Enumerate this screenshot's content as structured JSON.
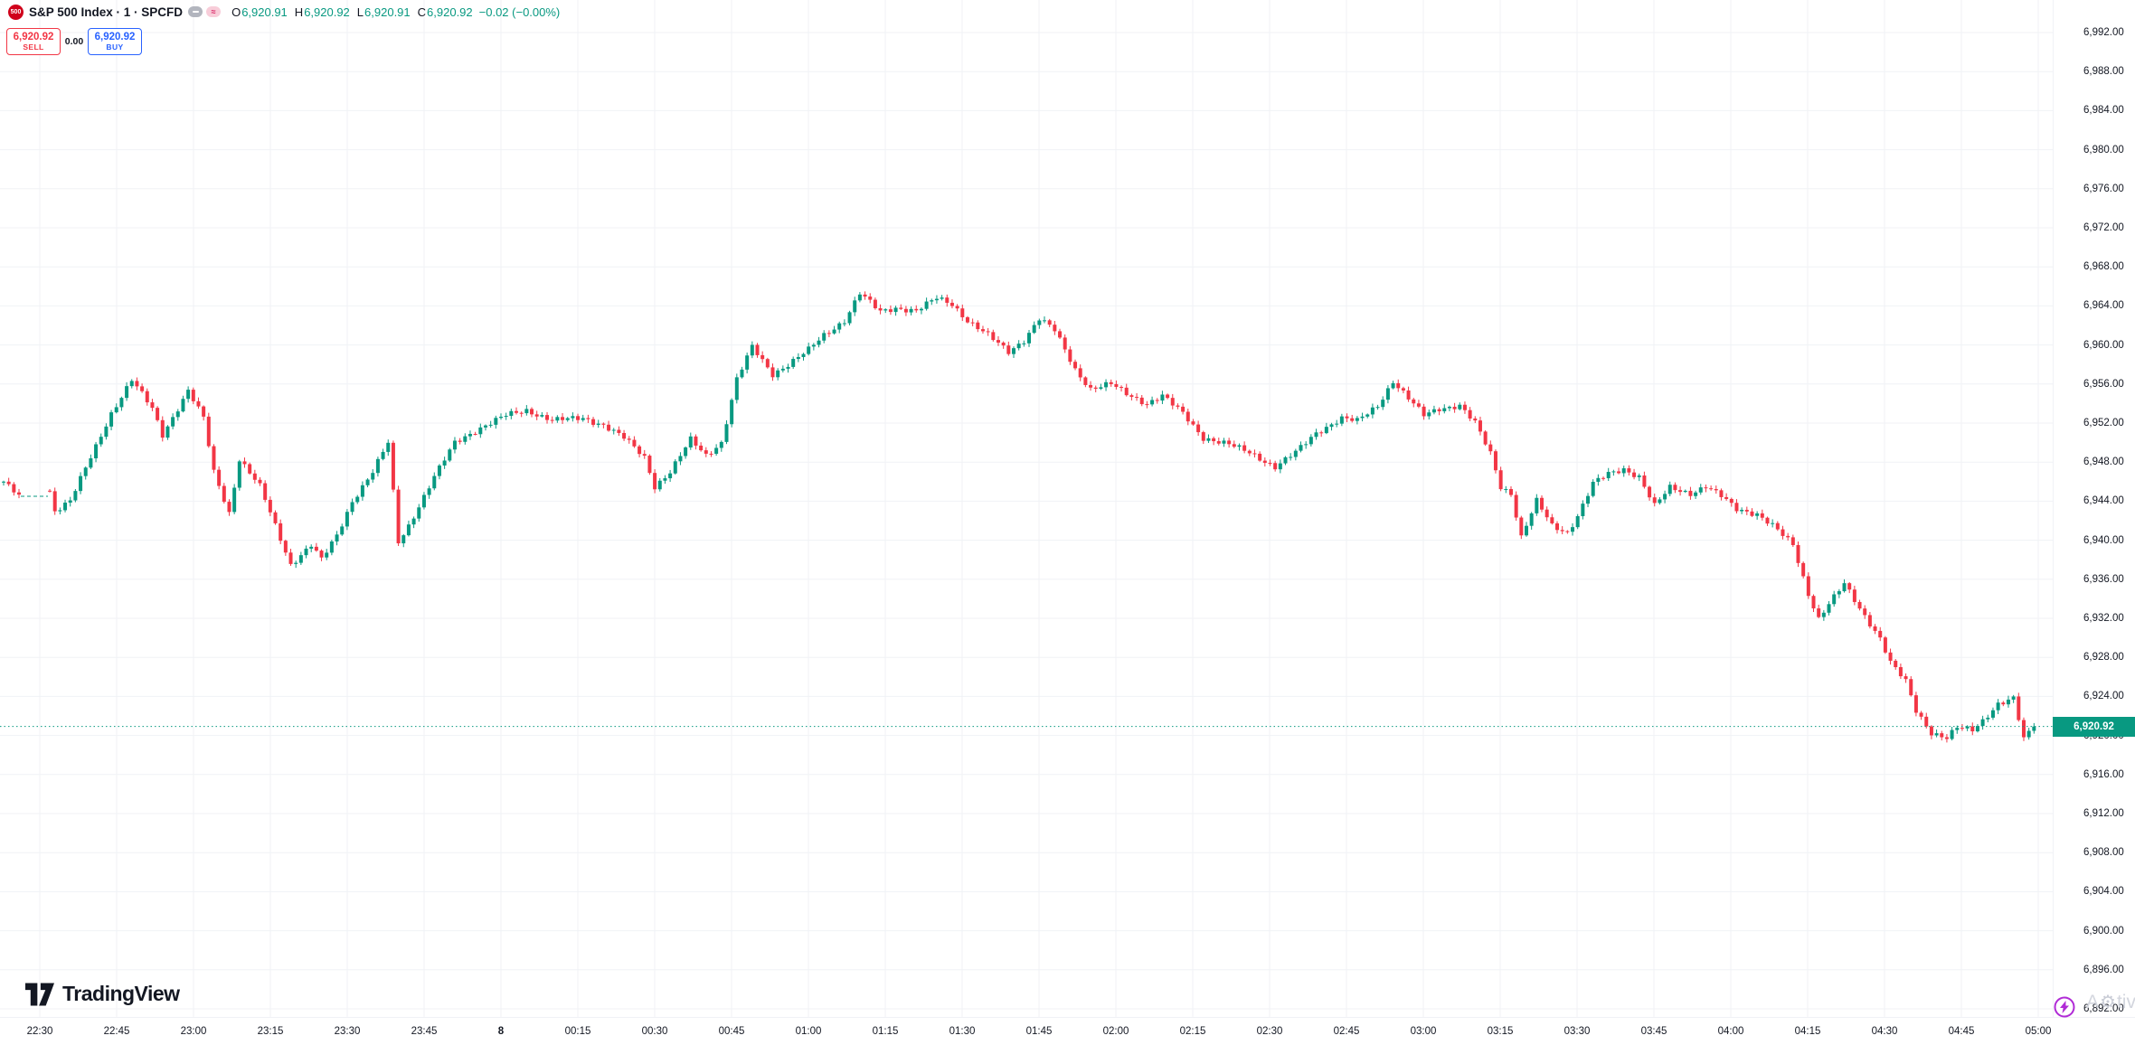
{
  "header": {
    "logo_text": "500",
    "title": "S&P 500 Index · 1 · SPCFD",
    "approx_glyph": "≈",
    "open_label": "O",
    "open_value": "6,920.91",
    "high_label": "H",
    "high_value": "6,920.92",
    "low_label": "L",
    "low_value": "6,920.91",
    "close_label": "C",
    "close_value": "6,920.92",
    "change": "−0.02 (−0.00%)"
  },
  "trade_panel": {
    "sell_price": "6,920.92",
    "sell_label": "SELL",
    "spread": "0.00",
    "buy_price": "6,920.92",
    "buy_label": "BUY"
  },
  "price_axis": {
    "labels": [
      "6,992.00",
      "6,988.00",
      "6,984.00",
      "6,980.00",
      "6,976.00",
      "6,972.00",
      "6,968.00",
      "6,964.00",
      "6,960.00",
      "6,956.00",
      "6,952.00",
      "6,948.00",
      "6,944.00",
      "6,940.00",
      "6,936.00",
      "6,932.00",
      "6,928.00",
      "6,924.00",
      "6,920.00",
      "6,916.00",
      "6,912.00",
      "6,908.00",
      "6,904.00",
      "6,900.00",
      "6,896.00",
      "6,892.00"
    ],
    "last_price": "6,920.92"
  },
  "time_axis": {
    "labels": [
      "22:30",
      "22:45",
      "23:00",
      "23:15",
      "23:30",
      "23:45",
      "8",
      "00:15",
      "00:30",
      "00:45",
      "01:00",
      "01:15",
      "01:30",
      "01:45",
      "02:00",
      "02:15",
      "02:30",
      "02:45",
      "03:00",
      "03:15",
      "03:30",
      "03:45",
      "04:00",
      "04:15",
      "04:30",
      "04:45",
      "05:00"
    ],
    "bold_index": 6
  },
  "footer": {
    "logo_text": "TradingView"
  },
  "watermark": {
    "prefix": "A",
    "gear": "⚙",
    "suffix": "tiva"
  },
  "chart_data": {
    "type": "candlestick",
    "title": "S&P 500 Index",
    "interval": "1",
    "exchange": "SPCFD",
    "ohlc_last": {
      "open": 6920.91,
      "high": 6920.92,
      "low": 6920.91,
      "close": 6920.92,
      "change": -0.02,
      "change_pct": -0.0
    },
    "last_price": 6920.92,
    "y_axis": {
      "min": 6892,
      "max": 6992,
      "step": 4
    },
    "x_axis": {
      "start": "22:30",
      "end": "05:00",
      "step_minutes": 15
    },
    "grid": true,
    "colors": {
      "up": "#089981",
      "down": "#f23645",
      "price_line": "#089981",
      "grid": "#f0f2f6"
    },
    "gap_segment": {
      "from": 3,
      "to": 9,
      "price": 6944.5
    },
    "waypoints": [
      [
        0,
        6946
      ],
      [
        3,
        6944.5
      ],
      [
        9,
        6945
      ],
      [
        10,
        6943
      ],
      [
        13,
        6944
      ],
      [
        17,
        6948.5
      ],
      [
        21,
        6953
      ],
      [
        25,
        6956.4
      ],
      [
        29,
        6953.5
      ],
      [
        31,
        6950.8
      ],
      [
        34,
        6953.5
      ],
      [
        36,
        6955.3
      ],
      [
        39,
        6952.5
      ],
      [
        41,
        6947
      ],
      [
        44,
        6942.8
      ],
      [
        46,
        6948.3
      ],
      [
        50,
        6945.5
      ],
      [
        53,
        6941.5
      ],
      [
        56,
        6937.5
      ],
      [
        60,
        6939.5
      ],
      [
        62,
        6938
      ],
      [
        65,
        6940.5
      ],
      [
        68,
        6944
      ],
      [
        72,
        6947
      ],
      [
        75,
        6950
      ],
      [
        77,
        6939.8
      ],
      [
        79,
        6941.5
      ],
      [
        82,
        6944.5
      ],
      [
        84,
        6946.5
      ],
      [
        88,
        6950
      ],
      [
        93,
        6951.5
      ],
      [
        98,
        6952.8
      ],
      [
        102,
        6953.3
      ],
      [
        107,
        6952.3
      ],
      [
        113,
        6952.5
      ],
      [
        117,
        6951.8
      ],
      [
        121,
        6950.5
      ],
      [
        125,
        6948.5
      ],
      [
        127,
        6945.5
      ],
      [
        130,
        6947
      ],
      [
        134,
        6950.3
      ],
      [
        137,
        6948.7
      ],
      [
        140,
        6950
      ],
      [
        143,
        6956.5
      ],
      [
        146,
        6959.8
      ],
      [
        150,
        6957
      ],
      [
        153,
        6958
      ],
      [
        157,
        6959.5
      ],
      [
        160,
        6961
      ],
      [
        164,
        6962.5
      ],
      [
        167,
        6965.3
      ],
      [
        171,
        6963.4
      ],
      [
        174,
        6963.8
      ],
      [
        178,
        6963.5
      ],
      [
        182,
        6964.8
      ],
      [
        185,
        6964.2
      ],
      [
        188,
        6962.5
      ],
      [
        192,
        6961
      ],
      [
        196,
        6959.3
      ],
      [
        199,
        6960.5
      ],
      [
        202,
        6962.7
      ],
      [
        205,
        6961.5
      ],
      [
        209,
        6957.5
      ],
      [
        212,
        6955.5
      ],
      [
        216,
        6956
      ],
      [
        219,
        6955
      ],
      [
        223,
        6954
      ],
      [
        226,
        6954.8
      ],
      [
        230,
        6953
      ],
      [
        234,
        6950.5
      ],
      [
        239,
        6949.8
      ],
      [
        243,
        6949
      ],
      [
        248,
        6947.5
      ],
      [
        252,
        6949
      ],
      [
        256,
        6951
      ],
      [
        261,
        6952.5
      ],
      [
        264,
        6952.2
      ],
      [
        268,
        6953.8
      ],
      [
        271,
        6956.3
      ],
      [
        274,
        6954.5
      ],
      [
        277,
        6952.8
      ],
      [
        280,
        6953.5
      ],
      [
        284,
        6953.8
      ],
      [
        287,
        6952
      ],
      [
        290,
        6948.9
      ],
      [
        292,
        6945.5
      ],
      [
        294,
        6944.8
      ],
      [
        296,
        6940.3
      ],
      [
        299,
        6944
      ],
      [
        302,
        6941.5
      ],
      [
        305,
        6940.8
      ],
      [
        307,
        6942.5
      ],
      [
        310,
        6945.8
      ],
      [
        313,
        6946.8
      ],
      [
        316,
        6947.3
      ],
      [
        319,
        6946.5
      ],
      [
        322,
        6943.5
      ],
      [
        325,
        6945.4
      ],
      [
        329,
        6944.8
      ],
      [
        332,
        6945.5
      ],
      [
        335,
        6944.5
      ],
      [
        338,
        6943.2
      ],
      [
        342,
        6942.7
      ],
      [
        345,
        6941.5
      ],
      [
        349,
        6939.5
      ],
      [
        352,
        6934.5
      ],
      [
        354,
        6932
      ],
      [
        356,
        6933.5
      ],
      [
        359,
        6935.5
      ],
      [
        362,
        6933
      ],
      [
        366,
        6930
      ],
      [
        368,
        6927.5
      ],
      [
        371,
        6925.5
      ],
      [
        373,
        6922.5
      ],
      [
        376,
        6920.3
      ],
      [
        379,
        6919.8
      ],
      [
        381,
        6920.8
      ],
      [
        384,
        6920.5
      ],
      [
        386,
        6921.5
      ],
      [
        389,
        6923.3
      ],
      [
        392,
        6923.8
      ],
      [
        394,
        6919.6
      ],
      [
        396,
        6920.92
      ]
    ]
  }
}
